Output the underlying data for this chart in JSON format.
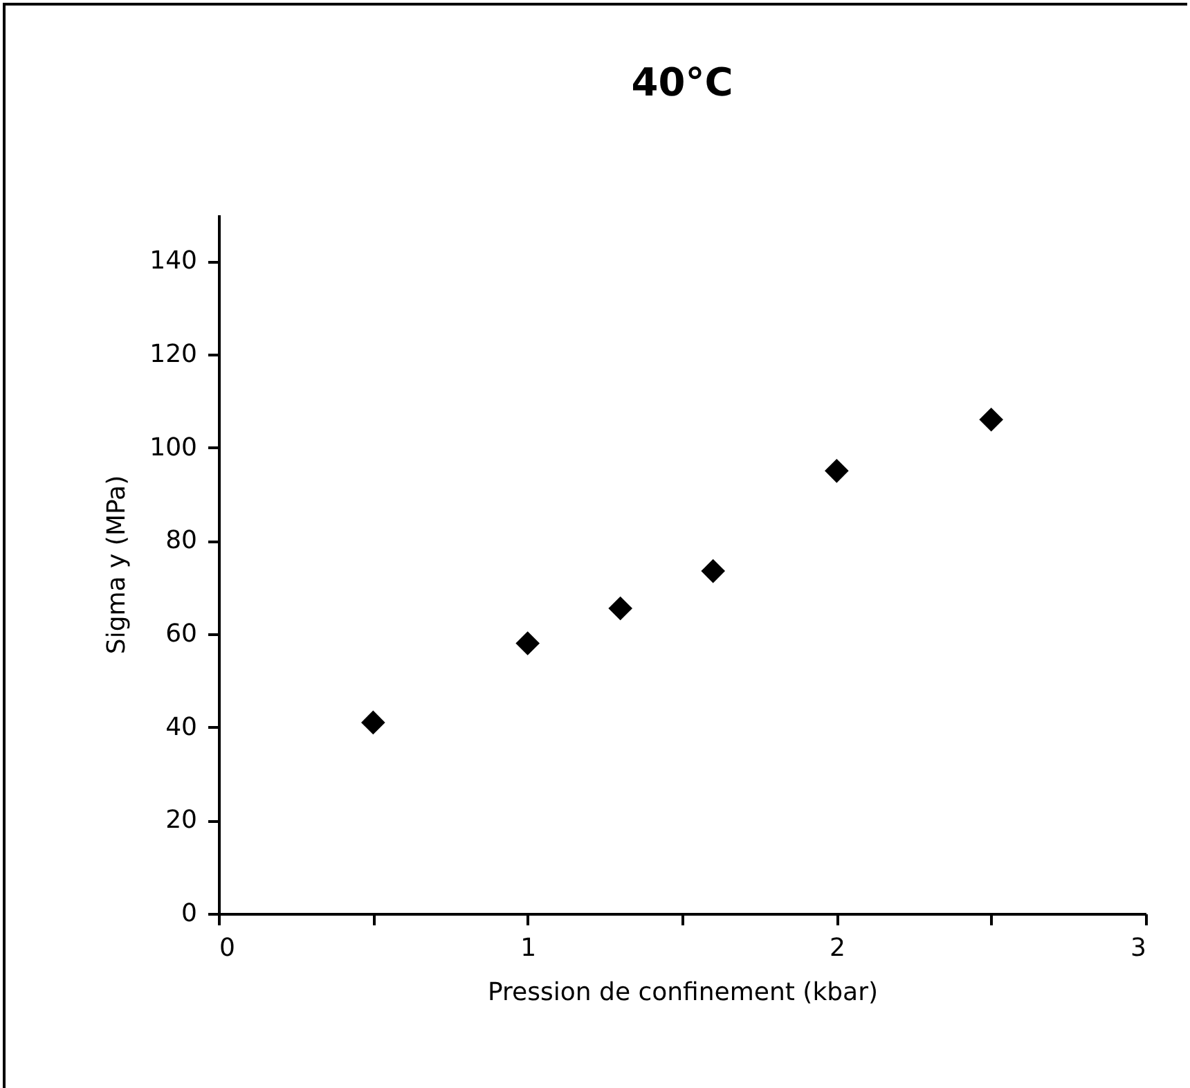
{
  "chart_data": {
    "type": "scatter",
    "title": "40°C",
    "xlabel": "Pression de confinement (kbar)",
    "ylabel": "Sigma y (MPa)",
    "x": [
      0.5,
      1,
      1.3,
      1.6,
      2,
      2.5
    ],
    "series": [
      {
        "color": "#000000",
        "values": [
          41,
          58,
          65.5,
          73.5,
          95,
          106
        ]
      }
    ],
    "xlim": [
      0,
      3
    ],
    "xticks": [
      0,
      {
        "value": 0.5,
        "label": null
      },
      1,
      {
        "value": 1.5,
        "label": null
      },
      2,
      {
        "value": 2.5,
        "label": null
      },
      3
    ],
    "ylim": [
      0,
      150
    ],
    "yticks": [
      0,
      20,
      40,
      60,
      80,
      100,
      120,
      140
    ],
    "grid": false,
    "marker": "diamond"
  }
}
